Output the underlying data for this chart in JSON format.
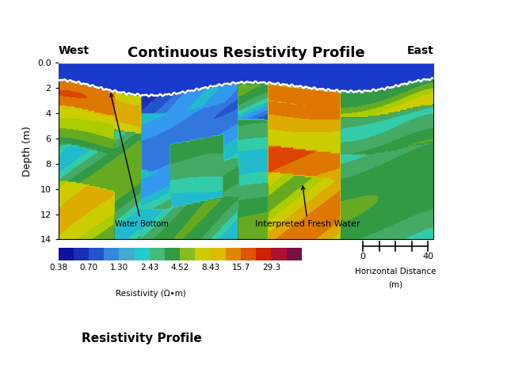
{
  "title": "Continuous Resistivity Profile",
  "xlabel_bottom": "Resistivity Profile",
  "ylabel": "Depth (m)",
  "west_label": "West",
  "east_label": "East",
  "water_bottom_label": "Water Bottom",
  "fresh_water_label": "Interpreted Fresh Water",
  "resistivity_label": "Resistivity (Ω•m)",
  "resistivity_values": [
    "0.38",
    "0.70",
    "1.30",
    "2.43",
    "4.52",
    "8.43",
    "15.7",
    "29.3"
  ],
  "legend_colors": [
    "#10109a",
    "#1a2db5",
    "#2255cc",
    "#3388dd",
    "#44aacc",
    "#22cccc",
    "#44bb77",
    "#339944",
    "#88bb22",
    "#cccc00",
    "#ddbb00",
    "#dd8800",
    "#dd5500",
    "#cc2200",
    "#aa1133",
    "#771144"
  ],
  "bg_color": "#ffffff",
  "water_color": "#1a2db5",
  "title_fontsize": 13,
  "axis_fontsize": 8,
  "ylabel_fontsize": 9
}
